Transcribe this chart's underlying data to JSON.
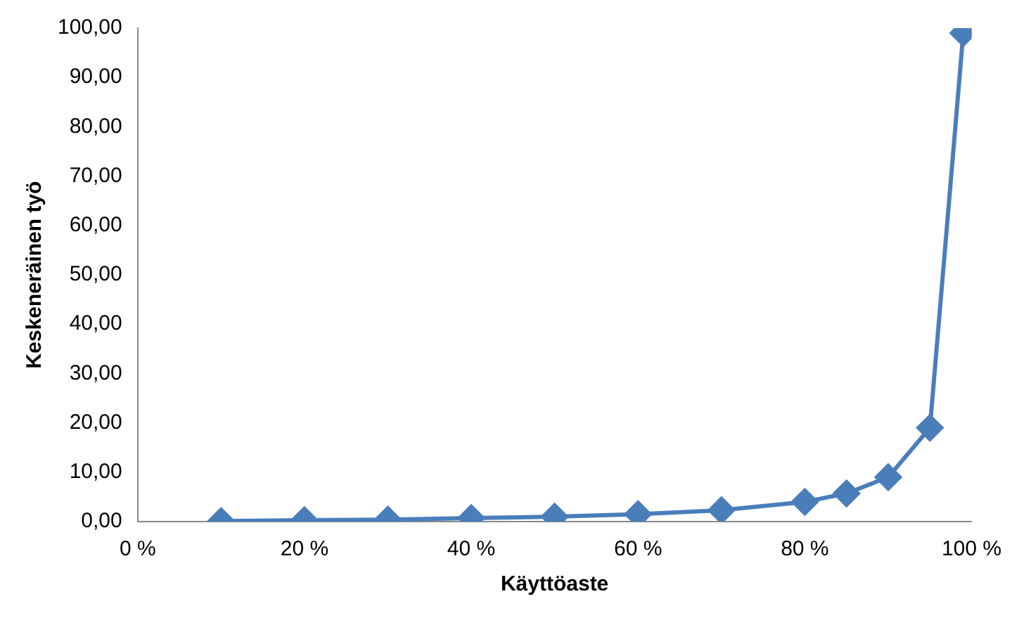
{
  "chart_data": {
    "type": "line",
    "xlabel": "Käyttöaste",
    "ylabel": "Keskeneräinen työ",
    "x": [
      10,
      20,
      30,
      40,
      50,
      60,
      70,
      80,
      85,
      90,
      95,
      99
    ],
    "series": [
      {
        "color": "#4a7ebb",
        "values": [
          0.1,
          0.3,
          0.4,
          0.7,
          1,
          1.5,
          2.3,
          4,
          5.7,
          9,
          19,
          99
        ]
      }
    ],
    "xlim": [
      0,
      100
    ],
    "xticks": [
      {
        "value": 0,
        "label": "0 %"
      },
      {
        "value": 20,
        "label": "20 %"
      },
      {
        "value": 40,
        "label": "40 %"
      },
      {
        "value": 60,
        "label": "60 %"
      },
      {
        "value": 80,
        "label": "80 %"
      },
      {
        "value": 100,
        "label": "100 %"
      }
    ],
    "ylim": [
      0,
      100
    ],
    "yticks": [
      {
        "value": 0,
        "label": "0,00"
      },
      {
        "value": 10,
        "label": "10,00"
      },
      {
        "value": 20,
        "label": "20,00"
      },
      {
        "value": 30,
        "label": "30,00"
      },
      {
        "value": 40,
        "label": "40,00"
      },
      {
        "value": 50,
        "label": "50,00"
      },
      {
        "value": 60,
        "label": "60,00"
      },
      {
        "value": 70,
        "label": "70,00"
      },
      {
        "value": 80,
        "label": "80,00"
      },
      {
        "value": 90,
        "label": "90,00"
      },
      {
        "value": 100,
        "label": "100,00"
      }
    ],
    "marker": "diamond",
    "grid": false,
    "legend": false
  }
}
